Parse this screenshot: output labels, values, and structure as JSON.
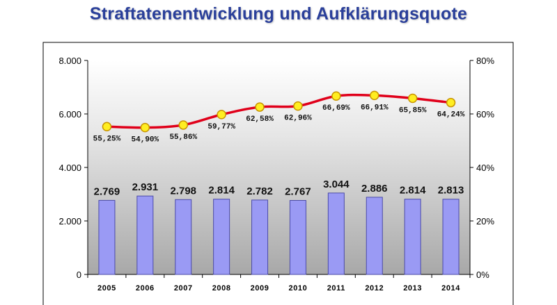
{
  "title": "Straftatenentwicklung und Aufklärungsquote",
  "colors": {
    "title": "#2a3f9a",
    "bar_fill": "#9a9af4",
    "bar_stroke": "#4a4aa8",
    "line": "#e0001a",
    "marker_fill": "#ffee22",
    "marker_stroke": "#c89400",
    "plot_gradient_top": "#ffffff",
    "plot_gradient_bottom": "#a8a8a8"
  },
  "chart_data": {
    "type": "bar",
    "categories": [
      "2005",
      "2006",
      "2007",
      "2008",
      "2009",
      "2010",
      "2011",
      "2012",
      "2013",
      "2014"
    ],
    "series": [
      {
        "type": "bar",
        "axis": "left",
        "values": [
          2769,
          2931,
          2798,
          2814,
          2782,
          2767,
          3044,
          2886,
          2814,
          2813
        ],
        "labels": [
          "2.769",
          "2.931",
          "2.798",
          "2.814",
          "2.782",
          "2.767",
          "3.044",
          "2.886",
          "2.814",
          "2.813"
        ]
      },
      {
        "type": "line",
        "axis": "right",
        "values": [
          55.25,
          54.9,
          55.86,
          59.77,
          62.58,
          62.96,
          66.69,
          66.91,
          65.85,
          64.24
        ],
        "labels": [
          "55,25%",
          "54,90%",
          "55,86%",
          "59,77%",
          "62,58%",
          "62,96%",
          "66,69%",
          "66,91%",
          "65,85%",
          "64,24%"
        ]
      }
    ],
    "y_left": {
      "range": [
        0,
        8000
      ],
      "ticks": [
        0,
        2000,
        4000,
        6000,
        8000
      ],
      "tick_labels": [
        "0",
        "2.000",
        "4.000",
        "6.000",
        "8.000"
      ]
    },
    "y_right": {
      "range": [
        0,
        80
      ],
      "ticks": [
        0,
        20,
        40,
        60,
        80
      ],
      "tick_labels": [
        "0%",
        "20%",
        "40%",
        "60%",
        "80%"
      ]
    },
    "grid": false,
    "legend": "none"
  }
}
